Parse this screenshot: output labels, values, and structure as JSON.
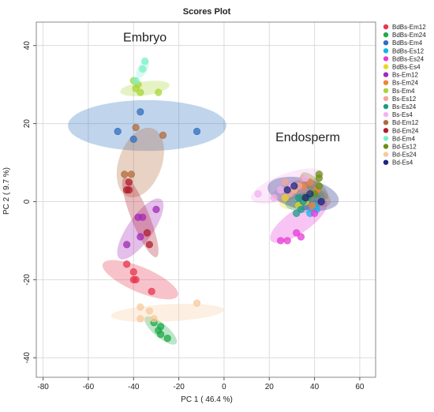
{
  "chart_data": {
    "type": "scatter",
    "title": "Scores Plot",
    "xlabel": "PC 1 ( 46.4 %)",
    "ylabel": "PC 2 ( 9.7 %)",
    "xlim": [
      -83,
      67
    ],
    "ylim": [
      -45,
      46
    ],
    "x_ticks": [
      -80,
      -60,
      -40,
      -20,
      0,
      20,
      40,
      60
    ],
    "y_ticks": [
      -40,
      -20,
      0,
      20,
      40
    ],
    "grid": true,
    "legend_position": "right",
    "annotations": [
      {
        "text": "Embryo",
        "x": -35,
        "y": 41
      },
      {
        "text": "Endosperm",
        "x": 37,
        "y": 15.5
      }
    ],
    "series": [
      {
        "name": "BdBs-Em12",
        "color": "#e8364f",
        "points": [
          [
            -43,
            -16
          ],
          [
            -40,
            -18
          ],
          [
            -40,
            -20
          ],
          [
            -39,
            -20
          ],
          [
            -32,
            -23
          ]
        ],
        "ellipse": {
          "cx": -37,
          "cy": -20,
          "rx": 18,
          "ry": 3.2,
          "angle": -23
        }
      },
      {
        "name": "BdBs-Em24",
        "color": "#1faa4a",
        "points": [
          [
            -31,
            -31
          ],
          [
            -28,
            -32
          ],
          [
            -28,
            -34
          ],
          [
            -25,
            -35
          ],
          [
            -29,
            -33
          ]
        ],
        "ellipse": {
          "cx": -28,
          "cy": -33,
          "rx": 9,
          "ry": 1.8,
          "angle": -40
        }
      },
      {
        "name": "BdBs-Em4",
        "color": "#2f6fc0",
        "points": [
          [
            -47,
            18
          ],
          [
            -40,
            16
          ],
          [
            -37,
            23
          ],
          [
            -12,
            18
          ]
        ],
        "ellipse": {
          "cx": -34,
          "cy": 19.5,
          "rx": 35,
          "ry": 6.5,
          "angle": 0
        }
      },
      {
        "name": "BdBs-Es12",
        "color": "#12b6e6",
        "points": [
          [
            38,
            -3
          ],
          [
            40,
            -1
          ],
          [
            41,
            -2
          ],
          [
            39,
            2
          ]
        ],
        "ellipse": {
          "cx": 38,
          "cy": 0,
          "rx": 7,
          "ry": 2.5,
          "angle": 25
        }
      },
      {
        "name": "BdBs-Es24",
        "color": "#e63cd6",
        "points": [
          [
            25,
            -10
          ],
          [
            28,
            -10
          ],
          [
            32,
            -8
          ],
          [
            34,
            -9
          ],
          [
            40,
            -3
          ]
        ],
        "ellipse": {
          "cx": 33,
          "cy": -5,
          "rx": 15,
          "ry": 3,
          "angle": 35
        }
      },
      {
        "name": "BdBs-Es4",
        "color": "#e8d81f",
        "points": [
          [
            27,
            1
          ],
          [
            31,
            3
          ],
          [
            36,
            0
          ],
          [
            38,
            2
          ],
          [
            33,
            -1
          ]
        ],
        "ellipse": {
          "cx": 33,
          "cy": 1,
          "rx": 9,
          "ry": 2.5,
          "angle": 20
        }
      },
      {
        "name": "Bs-Em12",
        "color": "#a22ab6",
        "points": [
          [
            -43,
            -11
          ],
          [
            -38,
            -4
          ],
          [
            -36,
            -4
          ],
          [
            -30,
            -2
          ],
          [
            -37,
            -9
          ]
        ],
        "ellipse": {
          "cx": -37,
          "cy": -7,
          "rx": 16,
          "ry": 3.2,
          "angle": 55
        }
      },
      {
        "name": "Bs-Em24",
        "color": "#f0843a",
        "points": [
          [
            35,
            4
          ],
          [
            38,
            5
          ],
          [
            41,
            3
          ],
          [
            39,
            -1
          ],
          [
            36,
            1
          ]
        ],
        "ellipse": {
          "cx": 38,
          "cy": 2,
          "rx": 10,
          "ry": 2.5,
          "angle": -25
        }
      },
      {
        "name": "Bs-Em4",
        "color": "#a8d63a",
        "points": [
          [
            -40,
            31
          ],
          [
            -38,
            30
          ],
          [
            -39,
            29
          ],
          [
            -37,
            28
          ],
          [
            -29,
            28
          ]
        ],
        "ellipse": {
          "cx": -35,
          "cy": 29,
          "rx": 11,
          "ry": 1.8,
          "angle": 8
        }
      },
      {
        "name": "Bs-Es12",
        "color": "#f2a69c",
        "points": [
          [
            27,
            5
          ],
          [
            33,
            4
          ],
          [
            35,
            6
          ],
          [
            31,
            3
          ],
          [
            29,
            2
          ]
        ],
        "ellipse": {
          "cx": 31,
          "cy": 3,
          "rx": 11,
          "ry": 2.2,
          "angle": 20
        }
      },
      {
        "name": "Bs-Es24",
        "color": "#1a9b87",
        "points": [
          [
            32,
            -3
          ],
          [
            35,
            0
          ],
          [
            37,
            1
          ],
          [
            33,
            1
          ],
          [
            34,
            -2
          ]
        ],
        "ellipse": {
          "cx": 35,
          "cy": 0,
          "rx": 8,
          "ry": 2.2,
          "angle": 10
        }
      },
      {
        "name": "Bs-Es4",
        "color": "#f3b2ee",
        "points": [
          [
            15,
            2
          ],
          [
            22,
            1
          ],
          [
            25,
            3
          ],
          [
            30,
            4
          ],
          [
            36,
            6
          ]
        ],
        "ellipse": {
          "cx": 28,
          "cy": 4,
          "rx": 17,
          "ry": 3.2,
          "angle": 20
        }
      },
      {
        "name": "Bd-Em12",
        "color": "#b36a3a",
        "points": [
          [
            -44,
            7
          ],
          [
            -41,
            7
          ],
          [
            -39,
            19
          ],
          [
            -27,
            17
          ]
        ],
        "ellipse": {
          "cx": -37,
          "cy": 10,
          "rx": 16,
          "ry": 5.5,
          "angle": 70
        }
      },
      {
        "name": "Bd-Em24",
        "color": "#b01e2f",
        "points": [
          [
            -42,
            3
          ],
          [
            -43,
            3
          ],
          [
            -34,
            -8
          ],
          [
            -33,
            -11
          ],
          [
            -42,
            5
          ]
        ],
        "ellipse": {
          "cx": -37,
          "cy": -4,
          "rx": 19,
          "ry": 2.3,
          "angle": -68
        }
      },
      {
        "name": "Bd-Em4",
        "color": "#7cf0c9",
        "points": [
          [
            -39,
            31
          ],
          [
            -36,
            34
          ],
          [
            -35,
            36
          ]
        ],
        "ellipse": {
          "cx": -36,
          "cy": 34,
          "rx": 4.5,
          "ry": 1.2,
          "angle": 60
        }
      },
      {
        "name": "Bd-Es12",
        "color": "#6b8f12",
        "points": [
          [
            42,
            6
          ],
          [
            42,
            7
          ],
          [
            42,
            4
          ],
          [
            40,
            2
          ],
          [
            36,
            1
          ]
        ],
        "ellipse": {
          "cx": 40,
          "cy": 4,
          "rx": 8,
          "ry": 1.8,
          "angle": -45
        }
      },
      {
        "name": "Bd-Es24",
        "color": "#f7c99c",
        "points": [
          [
            -37,
            -27
          ],
          [
            -37,
            -30
          ],
          [
            -33,
            -28
          ],
          [
            -31,
            -30
          ],
          [
            -12,
            -26
          ]
        ],
        "ellipse": {
          "cx": -25,
          "cy": -28.5,
          "rx": 25,
          "ry": 2.2,
          "angle": 3
        }
      },
      {
        "name": "Bd-Es4",
        "color": "#1c2580",
        "points": [
          [
            28,
            3
          ],
          [
            31,
            4
          ],
          [
            38,
            2
          ],
          [
            43,
            0
          ],
          [
            36,
            1
          ]
        ],
        "ellipse": {
          "cx": 35,
          "cy": 2,
          "rx": 16,
          "ry": 4,
          "angle": -12
        }
      }
    ]
  }
}
